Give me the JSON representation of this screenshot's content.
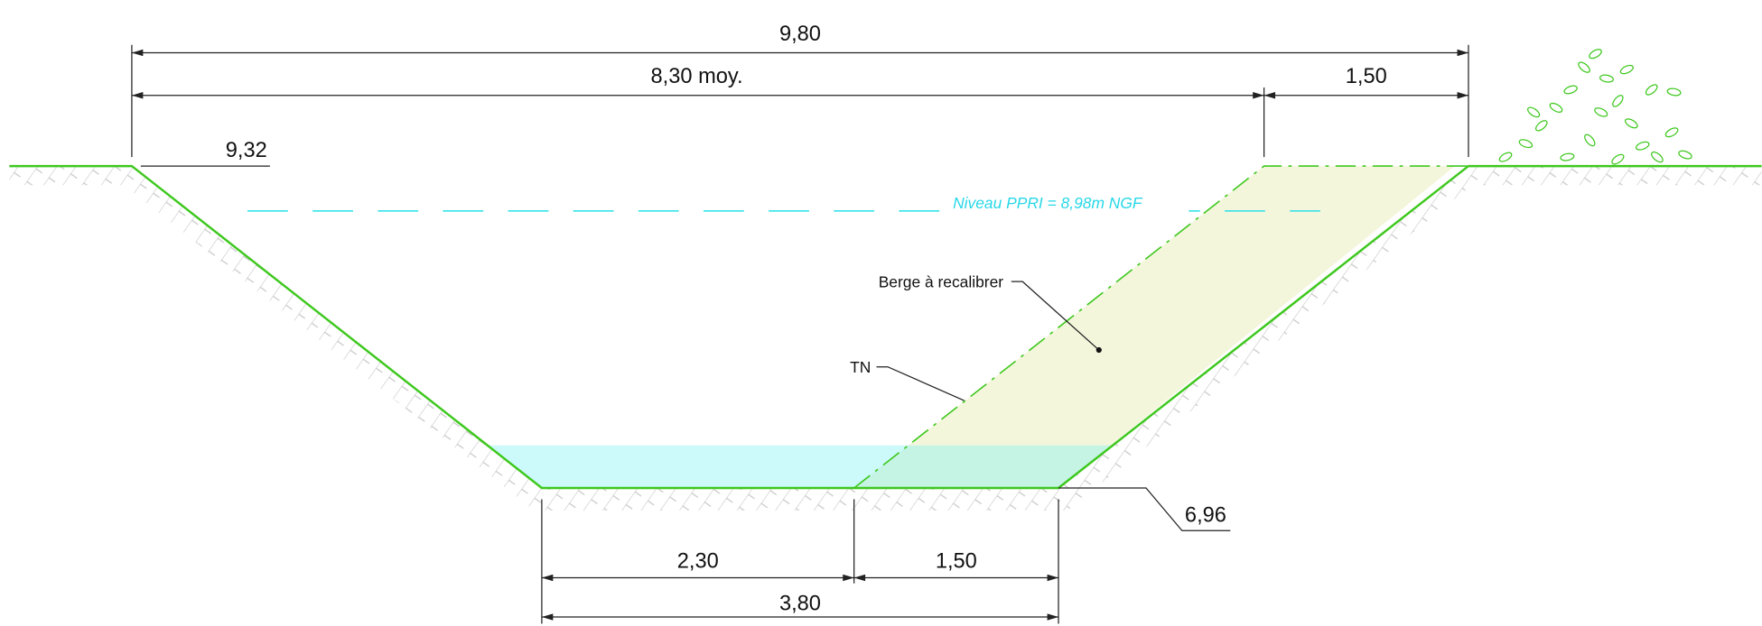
{
  "dimensions": {
    "total_top_width": "9,80",
    "average_width": "8,30 moy.",
    "top_berm": "1,50",
    "bottom_left": "2,30",
    "bottom_right": "1,50",
    "bottom_total": "3,80"
  },
  "elevations": {
    "top_bank": "9,32",
    "bed": "6,96"
  },
  "annotations": {
    "flood_level": "Niveau PPRI = 8,98m NGF",
    "bank": "Berge à recalibrer",
    "natural_ground": "TN"
  }
}
